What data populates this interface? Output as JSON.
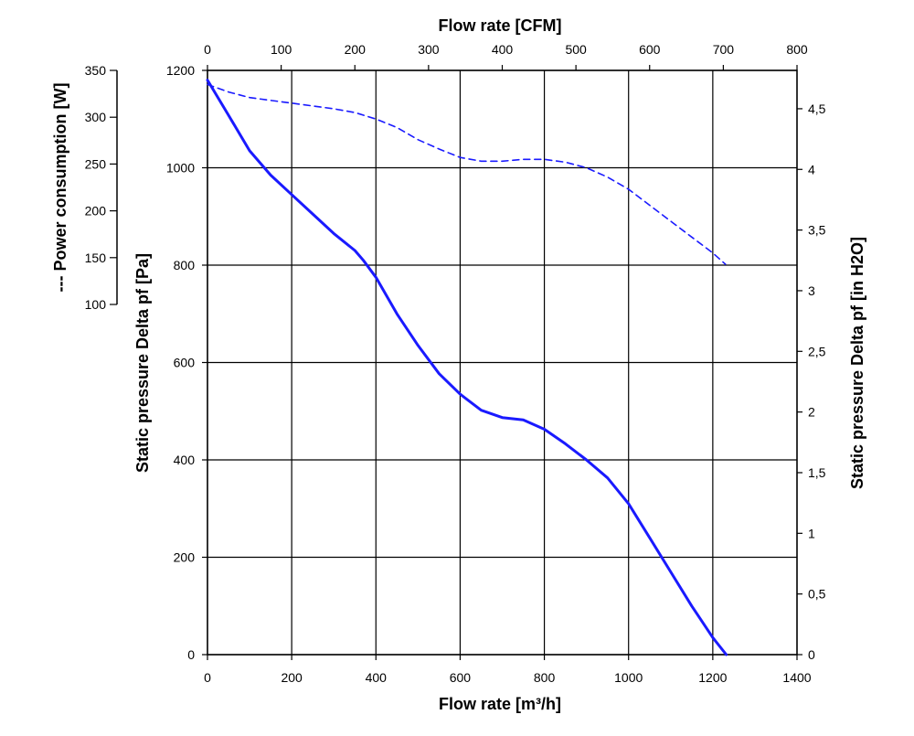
{
  "chart_data": {
    "type": "line",
    "title": "",
    "grid": true,
    "axes": {
      "bottom": {
        "label": "Flow rate [m³/h]",
        "range": [
          0,
          1400
        ],
        "ticks": [
          "0",
          "200",
          "400",
          "600",
          "800",
          "1000",
          "1200",
          "1400"
        ]
      },
      "top": {
        "label": "Flow rate [CFM]",
        "range": [
          0,
          800
        ],
        "ticks": [
          "0",
          "100",
          "200",
          "300",
          "400",
          "500",
          "600",
          "700",
          "800"
        ]
      },
      "left": {
        "label": "Static pressure Delta pf [Pa]",
        "range": [
          0,
          1200
        ],
        "ticks": [
          "0",
          "200",
          "400",
          "600",
          "800",
          "1000",
          "1200"
        ]
      },
      "right": {
        "label": "Static pressure Delta pf [in H2O]",
        "range": [
          0,
          4.816
        ],
        "ticks": [
          "0",
          "0,5",
          "1",
          "1,5",
          "2",
          "2,5",
          "3",
          "3,5",
          "4",
          "4,5"
        ],
        "values": [
          0,
          0.5,
          1,
          1.5,
          2,
          2.5,
          3,
          3.5,
          4,
          4.5
        ]
      },
      "power": {
        "label": "--- Power consumption [W]",
        "range": [
          100,
          350
        ],
        "ticks": [
          "100",
          "150",
          "200",
          "250",
          "300",
          "350"
        ]
      }
    },
    "series": [
      {
        "axis": "pressure",
        "style": "solid",
        "color": "#1a1aff",
        "x": [
          0,
          50,
          100,
          150,
          200,
          250,
          300,
          350,
          370,
          400,
          450,
          500,
          550,
          600,
          650,
          700,
          750,
          800,
          850,
          900,
          950,
          1000,
          1050,
          1100,
          1150,
          1200,
          1232
        ],
        "y": [
          1180,
          1108,
          1035,
          985,
          945,
          905,
          865,
          830,
          810,
          775,
          700,
          635,
          577,
          535,
          502,
          487,
          482,
          463,
          433,
          400,
          363,
          310,
          240,
          170,
          100,
          35,
          0
        ]
      },
      {
        "axis": "power",
        "style": "dashed",
        "color": "#1a1aff",
        "x": [
          0,
          50,
          100,
          150,
          200,
          250,
          300,
          350,
          400,
          450,
          500,
          550,
          600,
          650,
          700,
          750,
          800,
          850,
          900,
          950,
          1000,
          1050,
          1100,
          1150,
          1200,
          1230
        ],
        "y": [
          335,
          327,
          321,
          318,
          315,
          312,
          309,
          305,
          298,
          289,
          276,
          266,
          257,
          253,
          253,
          255,
          255,
          252,
          246,
          236,
          223,
          206,
          189,
          172,
          155,
          143
        ]
      }
    ]
  }
}
